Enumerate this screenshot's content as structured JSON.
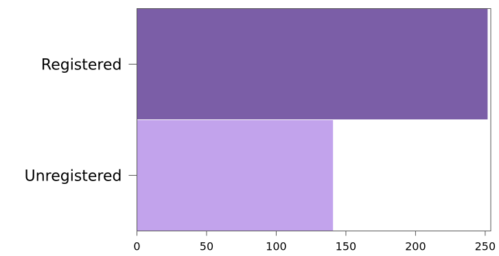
{
  "chart_data": {
    "type": "bar",
    "orientation": "horizontal",
    "categories": [
      "Registered",
      "Unregistered"
    ],
    "values": [
      252,
      141
    ],
    "colors": [
      "#7b5ea7",
      "#c2a3ec"
    ],
    "xlim": [
      0,
      254
    ],
    "xticks": [
      0,
      50,
      100,
      150,
      200,
      250
    ],
    "xticklabels": [
      "0",
      "50",
      "100",
      "150",
      "200",
      "250"
    ],
    "title": "",
    "xlabel": "",
    "ylabel": "",
    "grid": false,
    "legend": "none"
  }
}
